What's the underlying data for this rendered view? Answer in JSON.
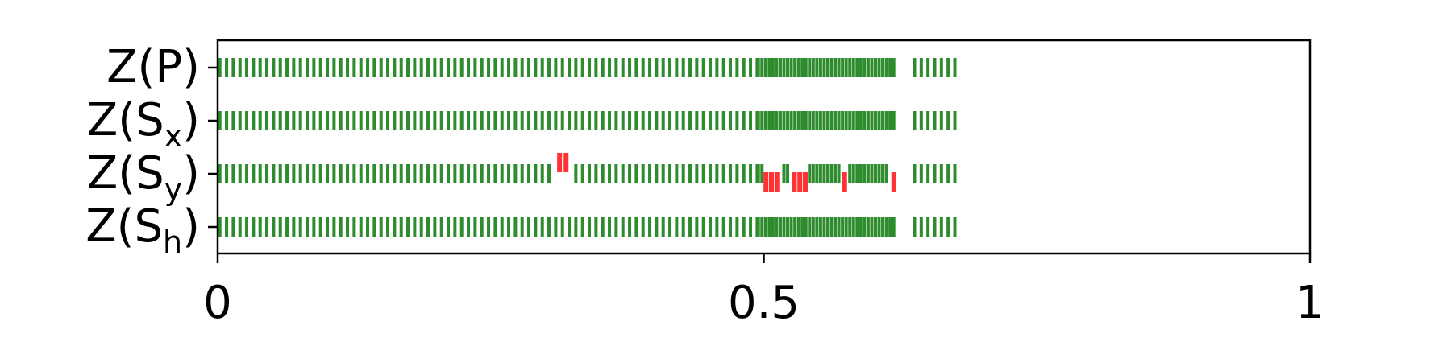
{
  "chart_data": {
    "type": "event-raster",
    "xlim": [
      0,
      1
    ],
    "xticks": [
      {
        "value": 0,
        "label": "0"
      },
      {
        "value": 0.5,
        "label": "0.5"
      },
      {
        "value": 1,
        "label": "1"
      }
    ],
    "rows": [
      {
        "main": "Z(S",
        "sub": "",
        "close": "P)",
        "label_text": "Z(P)"
      },
      {
        "main": "Z(S",
        "sub": "x",
        "close": ")",
        "label_text": "Z(Sx)"
      },
      {
        "main": "Z(S",
        "sub": "y",
        "close": ")",
        "label_text": "Z(Sy)"
      },
      {
        "main": "Z(S",
        "sub": "h",
        "close": ")",
        "label_text": "Z(Sh)"
      }
    ],
    "colors": {
      "pass": "#2e8b2e",
      "fail": "#ff3333",
      "axis": "#000000"
    },
    "dense_pattern": {
      "step": 0.00615,
      "dense_start": 0.002,
      "dense_end": 0.495,
      "denser_start": 0.495,
      "denser_end": 0.619,
      "denser_step": 0.00335,
      "gap_start": 0.619,
      "gap_end": 0.637,
      "tail_start": 0.638,
      "tail_end": 0.681
    },
    "failures_Sy": [
      {
        "x": 0.313,
        "half": true
      },
      {
        "x": 0.319,
        "half": true
      },
      {
        "x": 0.502
      },
      {
        "x": 0.507
      },
      {
        "x": 0.512
      },
      {
        "x": 0.528
      },
      {
        "x": 0.533
      },
      {
        "x": 0.538
      },
      {
        "x": 0.574
      },
      {
        "x": 0.619
      }
    ],
    "gaps_Sy": [
      [
        0.308,
        0.325
      ],
      [
        0.499,
        0.516
      ],
      [
        0.524,
        0.541
      ],
      [
        0.569,
        0.578
      ],
      [
        0.614,
        0.622
      ]
    ]
  }
}
